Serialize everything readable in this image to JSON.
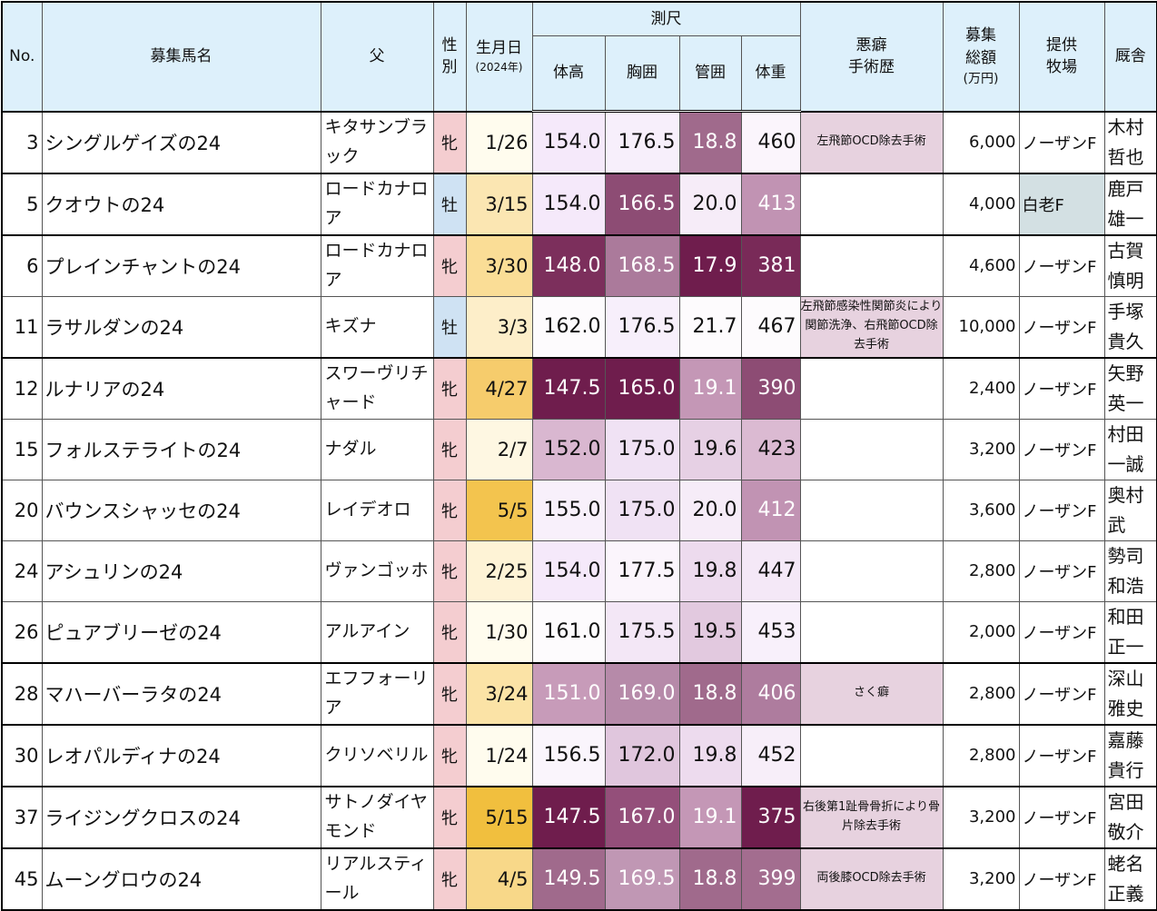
{
  "headers": {
    "no": "No.",
    "name": "募集馬名",
    "sire": "父",
    "sex": "性別",
    "birth": "生月日",
    "birth_sub": "(2024年)",
    "measure_group": "測尺",
    "height": "体高",
    "girth": "胸囲",
    "cannon": "管囲",
    "weight": "体重",
    "history": "悪癖\n手術歴",
    "price": "募集\n総額",
    "price_unit": "(万円)",
    "farm": "提供\n牧場",
    "trainer": "厩舎"
  },
  "colors": {
    "header_bg": "#ddf0fb",
    "female_bg": "#f4cdd0",
    "male_bg": "#cfe2f3",
    "history_bg": "#e7d2df",
    "alt_farm_bg": "#d3e0e3"
  },
  "rows": [
    {
      "no": "3",
      "name": "シングルゲイズの24",
      "sire": "キタサンブラック",
      "sex": "牝",
      "birth": "1/26",
      "height": "154.0",
      "girth": "176.5",
      "cannon": "18.8",
      "weight": "460",
      "history": "左飛節OCD除去手術",
      "price": "6,000",
      "farm": "ノーザンF",
      "trainer": "木村哲也",
      "birth_bg": "#fffcee",
      "h_bg": "#f5e9fa",
      "g_bg": "#f7effb",
      "c_bg": "#a06a8c",
      "w_bg": "#fbf5fc"
    },
    {
      "no": "5",
      "name": "クオウトの24",
      "sire": "ロードカナロア",
      "sex": "牡",
      "birth": "3/15",
      "height": "154.0",
      "girth": "166.5",
      "cannon": "20.0",
      "weight": "413",
      "history": "",
      "price": "4,000",
      "farm": "白老F",
      "trainer": "鹿戸雄一",
      "birth_bg": "#fbe6b2",
      "h_bg": "#f5e9fa",
      "g_bg": "#8d4c74",
      "c_bg": "#f6ecf8",
      "w_bg": "#c193b3"
    },
    {
      "no": "6",
      "name": "プレインチャントの24",
      "sire": "ロードカナロア",
      "sex": "牝",
      "birth": "3/30",
      "height": "148.0",
      "girth": "168.5",
      "cannon": "17.9",
      "weight": "381",
      "history": "",
      "price": "4,600",
      "farm": "ノーザンF",
      "trainer": "古賀慎明",
      "birth_bg": "#fadd96",
      "h_bg": "#7c2f5c",
      "g_bg": "#ab7a9b",
      "c_bg": "#6f1d4d",
      "w_bg": "#792a58"
    },
    {
      "no": "11",
      "name": "ラサルダンの24",
      "sire": "キズナ",
      "sex": "牡",
      "birth": "3/3",
      "height": "162.0",
      "girth": "176.5",
      "cannon": "21.7",
      "weight": "467",
      "history": "左飛節感染性関節炎により関節洗浄、右飛節OCD除去手術",
      "price": "10,000",
      "farm": "ノーザンF",
      "trainer": "手塚貴久",
      "birth_bg": "#fdeec9",
      "h_bg": "#fdfbfd",
      "g_bg": "#f7effb",
      "c_bg": "#fdfbfd",
      "w_bg": "#fdfbfd"
    },
    {
      "no": "12",
      "name": "ルナリアの24",
      "sire": "スワーヴリチャード",
      "sex": "牝",
      "birth": "4/27",
      "height": "147.5",
      "girth": "165.0",
      "cannon": "19.1",
      "weight": "390",
      "history": "",
      "price": "2,400",
      "farm": "ノーザンF",
      "trainer": "矢野英一",
      "birth_bg": "#f6cc6c",
      "h_bg": "#6f1d4d",
      "g_bg": "#6f1d4d",
      "c_bg": "#c497b6",
      "w_bg": "#8d4c74"
    },
    {
      "no": "15",
      "name": "フォルステライトの24",
      "sire": "ナダル",
      "sex": "牝",
      "birth": "2/7",
      "height": "152.0",
      "girth": "175.0",
      "cannon": "19.6",
      "weight": "423",
      "history": "",
      "price": "3,200",
      "farm": "ノーザンF",
      "trainer": "村田一誠",
      "birth_bg": "#fef7e2",
      "h_bg": "#d9b7d0",
      "g_bg": "#f0e2f4",
      "c_bg": "#e6d0e4",
      "w_bg": "#dbbad2"
    },
    {
      "no": "20",
      "name": "バウンスシャッセの24",
      "sire": "レイデオロ",
      "sex": "牝",
      "birth": "5/5",
      "height": "155.0",
      "girth": "175.0",
      "cannon": "20.0",
      "weight": "412",
      "history": "",
      "price": "3,600",
      "farm": "ノーザンF",
      "trainer": "奥村武",
      "birth_bg": "#f3c44e",
      "h_bg": "#f8f0fb",
      "g_bg": "#f0e2f4",
      "c_bg": "#f6ecf8",
      "w_bg": "#c193b3"
    },
    {
      "no": "24",
      "name": "アシュリンの24",
      "sire": "ヴァンゴッホ",
      "sex": "牝",
      "birth": "2/25",
      "height": "154.0",
      "girth": "177.5",
      "cannon": "19.8",
      "weight": "447",
      "history": "",
      "price": "2,800",
      "farm": "ノーザンF",
      "trainer": "勢司和浩",
      "birth_bg": "#fef3d6",
      "h_bg": "#f5e9fa",
      "g_bg": "#fbf5fc",
      "c_bg": "#eddbee",
      "w_bg": "#f4e8f7"
    },
    {
      "no": "26",
      "name": "ピュアブリーゼの24",
      "sire": "アルアイン",
      "sex": "牝",
      "birth": "1/30",
      "height": "161.0",
      "girth": "175.5",
      "cannon": "19.5",
      "weight": "453",
      "history": "",
      "price": "2,000",
      "farm": "ノーザンF",
      "trainer": "和田正一",
      "birth_bg": "#fffcee",
      "h_bg": "#fdfbfd",
      "g_bg": "#f3e7f6",
      "c_bg": "#e2c9df",
      "w_bg": "#f8f0fb"
    },
    {
      "no": "28",
      "name": "マハーバーラタの24",
      "sire": "エフフォーリア",
      "sex": "牝",
      "birth": "3/24",
      "height": "151.0",
      "girth": "169.0",
      "cannon": "18.8",
      "weight": "406",
      "history": "さく癖",
      "price": "2,800",
      "farm": "ノーザンF",
      "trainer": "深山雅史",
      "birth_bg": "#fbe3a6",
      "h_bg": "#c79bb9",
      "g_bg": "#b68aa9",
      "c_bg": "#a06a8c",
      "w_bg": "#ae7c9e"
    },
    {
      "no": "30",
      "name": "レオパルディナの24",
      "sire": "クリソベリル",
      "sex": "牝",
      "birth": "1/24",
      "height": "156.5",
      "girth": "172.0",
      "cannon": "19.8",
      "weight": "452",
      "history": "",
      "price": "2,800",
      "farm": "ノーザンF",
      "trainer": "嘉藤貴行",
      "birth_bg": "#fffcee",
      "h_bg": "#faf5fc",
      "g_bg": "#e0c6dd",
      "c_bg": "#eddbee",
      "w_bg": "#f7eef9"
    },
    {
      "no": "37",
      "name": "ライジングクロスの24",
      "sire": "サトノダイヤモンド",
      "sex": "牝",
      "birth": "5/15",
      "height": "147.5",
      "girth": "167.0",
      "cannon": "19.1",
      "weight": "375",
      "history": "右後第1趾骨骨折により骨片除去手術",
      "price": "3,200",
      "farm": "ノーザンF",
      "trainer": "宮田敬介",
      "birth_bg": "#f1bf3e",
      "h_bg": "#6f1d4d",
      "g_bg": "#944f7a",
      "c_bg": "#c497b6",
      "w_bg": "#6f1d4d"
    },
    {
      "no": "45",
      "name": "ムーングロウの24",
      "sire": "リアルスティール",
      "sex": "牝",
      "birth": "4/5",
      "height": "149.5",
      "girth": "169.5",
      "cannon": "18.8",
      "weight": "399",
      "history": "両後膝OCD除去手術",
      "price": "3,200",
      "farm": "ノーザンF",
      "trainer": "蛯名正義",
      "birth_bg": "#f8d889",
      "h_bg": "#a06a8c",
      "g_bg": "#c097b4",
      "c_bg": "#a06a8c",
      "w_bg": "#a36d8f"
    }
  ]
}
